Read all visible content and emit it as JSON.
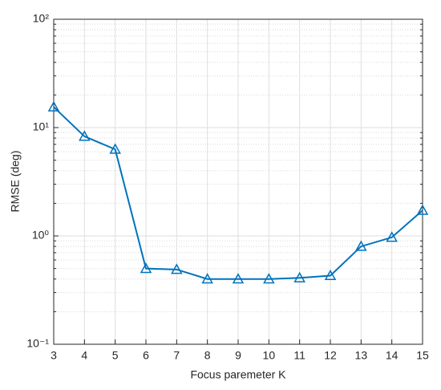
{
  "chart_data": {
    "type": "line",
    "xlabel": "Focus paremeter K",
    "ylabel": "RMSE (deg)",
    "x": [
      3,
      4,
      5,
      6,
      7,
      8,
      9,
      10,
      11,
      12,
      13,
      14,
      15
    ],
    "series": [
      {
        "color": "#0072bd",
        "marker": "triangle",
        "values": [
          15.5,
          8.3,
          6.3,
          0.5,
          0.49,
          0.4,
          0.4,
          0.4,
          0.41,
          0.43,
          0.8,
          0.97,
          1.72
        ]
      }
    ],
    "xlim": [
      3,
      15
    ],
    "xticks": [
      3,
      4,
      5,
      6,
      7,
      8,
      9,
      10,
      11,
      12,
      13,
      14,
      15
    ],
    "ylim": [
      0.1,
      100
    ],
    "ylog": true,
    "yticks": [
      {
        "value": 0.1,
        "label": "10⁻¹"
      },
      {
        "value": 1,
        "label": "10⁰"
      },
      {
        "value": 10,
        "label": "10¹"
      },
      {
        "value": 100,
        "label": "10²"
      }
    ],
    "grid": true,
    "minor_grid": true
  }
}
